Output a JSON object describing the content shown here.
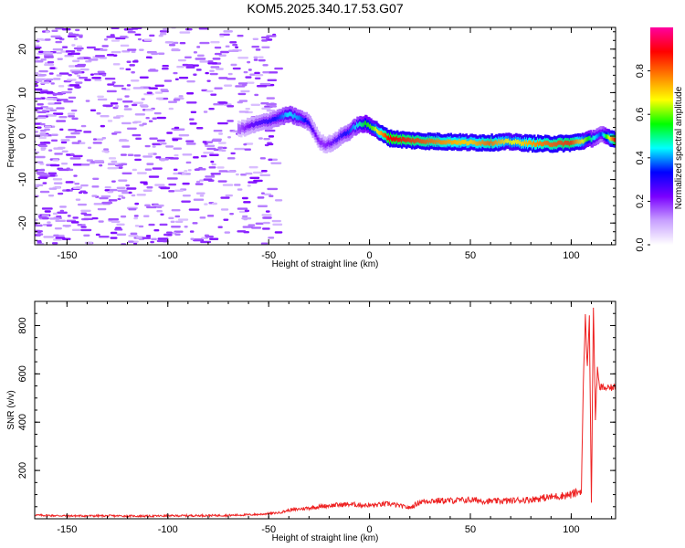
{
  "title": "KOM5.2025.340.17.53.G07",
  "chart_data": [
    {
      "type": "heatmap",
      "name": "spectrogram",
      "xlabel": "Height of straight line (km)",
      "ylabel": "Frequency (Hz)",
      "xlim": [
        -166,
        122
      ],
      "ylim": [
        -25,
        25
      ],
      "xticks": [
        -150,
        -100,
        -50,
        0,
        50,
        100
      ],
      "yticks": [
        -20,
        -10,
        0,
        10,
        20
      ],
      "colorbar": {
        "label": "Normalized spectral amplitude",
        "range": [
          0,
          1
        ],
        "ticks": [
          0.0,
          0.2,
          0.4,
          0.6,
          0.8
        ],
        "colormap": [
          "#ffffff",
          "#c8a0ff",
          "#7a00ff",
          "#0000ff",
          "#00ffff",
          "#00ff00",
          "#ffff00",
          "#ff8000",
          "#ff0000",
          "#ff00a0"
        ]
      },
      "ridge": {
        "x": [
          -65,
          -58,
          -50,
          -45,
          -40,
          -35,
          -30,
          -25,
          -22,
          -18,
          -14,
          -10,
          -6,
          -2,
          2,
          6,
          10,
          20,
          30,
          40,
          50,
          60,
          70,
          80,
          90,
          100,
          105,
          110,
          115,
          122
        ],
        "y": [
          1.5,
          2.5,
          3.5,
          4.2,
          5,
          4.2,
          3.2,
          -1,
          -2,
          -1.5,
          0,
          1,
          2.5,
          2.8,
          2,
          0.5,
          -0.5,
          -1,
          -1.2,
          -1.3,
          -1.5,
          -1.5,
          -1.3,
          -1.7,
          -1.8,
          -1.6,
          -1.2,
          -0.6,
          0.3,
          -0.8
        ],
        "amplitude": [
          0.15,
          0.25,
          0.3,
          0.35,
          0.45,
          0.4,
          0.3,
          0.2,
          0.2,
          0.25,
          0.3,
          0.35,
          0.45,
          0.55,
          0.6,
          0.75,
          0.9,
          0.85,
          0.8,
          0.75,
          0.7,
          0.8,
          0.65,
          0.75,
          0.8,
          0.85,
          0.7,
          0.5,
          0.35,
          0.9
        ]
      }
    },
    {
      "type": "line",
      "name": "snr",
      "xlabel": "Height of straight line (km)",
      "ylabel": "SNR (v/v)",
      "xlim": [
        -166,
        122
      ],
      "ylim": [
        0,
        900
      ],
      "xticks": [
        -150,
        -100,
        -50,
        0,
        50,
        100
      ],
      "yticks": [
        200,
        400,
        600,
        800
      ],
      "color": "#ee2222",
      "x": [
        -166,
        -150,
        -130,
        -110,
        -90,
        -70,
        -55,
        -45,
        -40,
        -30,
        -20,
        -10,
        0,
        10,
        20,
        25,
        30,
        40,
        50,
        60,
        70,
        80,
        90,
        100,
        105,
        106,
        107,
        108,
        109,
        110,
        111,
        112,
        113,
        114,
        115,
        118,
        122
      ],
      "y": [
        15,
        12,
        12,
        11,
        13,
        14,
        18,
        25,
        35,
        45,
        55,
        60,
        55,
        62,
        45,
        70,
        75,
        75,
        78,
        72,
        75,
        80,
        90,
        100,
        115,
        550,
        840,
        620,
        850,
        70,
        880,
        420,
        620,
        540,
        545,
        540,
        545
      ]
    }
  ]
}
